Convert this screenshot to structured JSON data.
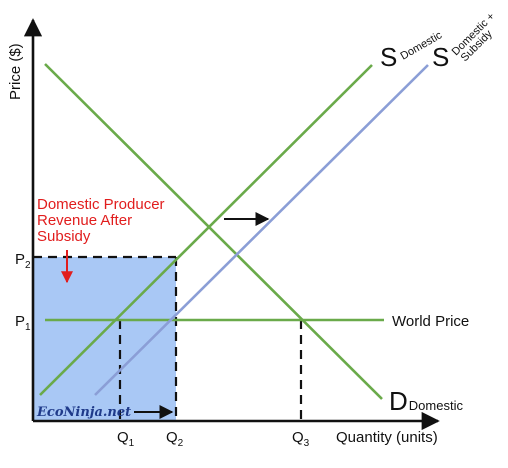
{
  "axes": {
    "y_label": "Price ($)",
    "x_label": "Quantity (units)",
    "y_ticks": [
      {
        "base": "P",
        "sub": "2"
      },
      {
        "base": "P",
        "sub": "1"
      }
    ],
    "x_ticks": [
      {
        "base": "Q",
        "sub": "1"
      },
      {
        "base": "Q",
        "sub": "2"
      },
      {
        "base": "Q",
        "sub": "3"
      }
    ]
  },
  "curves": {
    "supply_domestic": {
      "letter": "S",
      "sub": "Domestic"
    },
    "supply_subsidy": {
      "letter": "S",
      "sub_line1": "Domestic +",
      "sub_line2": "Subsidy"
    },
    "demand": {
      "letter": "D",
      "sub": "Domestic"
    },
    "world_price": "World Price"
  },
  "annotation": {
    "line1": "Domestic Producer",
    "line2": "Revenue After",
    "line3": "Subsidy"
  },
  "watermark": "EcoNinja.net",
  "colors": {
    "supply_line": "#6aaa4a",
    "subsidy_line": "#8b9ed6",
    "revenue_fill": "#a9c8f5",
    "annotation_text": "#e11d1d",
    "axis": "#111111"
  }
}
